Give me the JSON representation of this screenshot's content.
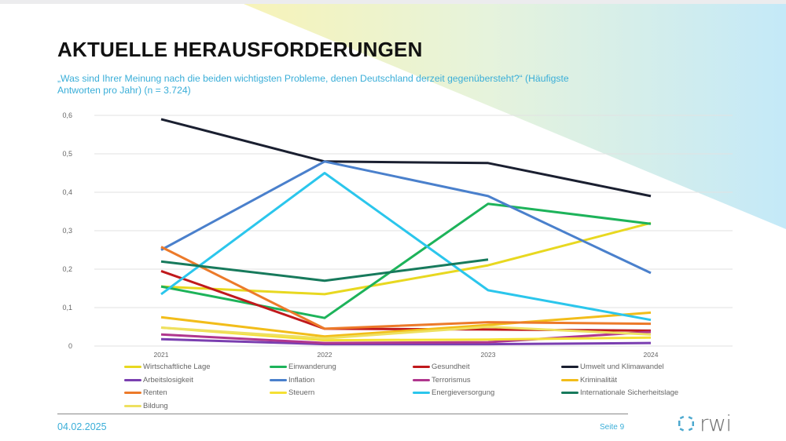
{
  "page": {
    "title": "AKTUELLE HERAUSFORDERUNGEN",
    "subtitle": "„Was sind Ihrer Meinung nach die beiden wichtigsten Probleme, denen Deutschland derzeit gegenübersteht?“ (Häufigste Antworten pro Jahr) (n = 3.724)",
    "footer_date": "04.02.2025",
    "footer_page": "Seite 9",
    "logo_text": "rwi",
    "accent_color": "#3aaed8"
  },
  "chart_data": {
    "type": "line",
    "title": "",
    "xlabel": "",
    "ylabel": "",
    "x": [
      "2021",
      "2022",
      "2023",
      "2024"
    ],
    "ylim": [
      0,
      0.6
    ],
    "yticks": [
      "0",
      "0,1",
      "0,2",
      "0,3",
      "0,4",
      "0,5",
      "0,6"
    ],
    "grid": true,
    "legend_position": "bottom",
    "series": [
      {
        "name": "Wirtschaftliche Lage",
        "color": "#e8d820",
        "values": [
          0.155,
          0.135,
          0.21,
          0.32
        ]
      },
      {
        "name": "Einwanderung",
        "color": "#1db35a",
        "values": [
          0.155,
          0.073,
          0.37,
          0.318
        ]
      },
      {
        "name": "Gesundheit",
        "color": "#c0191c",
        "values": [
          0.195,
          0.045,
          0.043,
          0.04
        ]
      },
      {
        "name": "Umwelt und Klimawandel",
        "color": "#1a1f30",
        "values": [
          0.59,
          0.48,
          0.476,
          0.39
        ]
      },
      {
        "name": "Arbeitslosigkeit",
        "color": "#7a3fb0",
        "values": [
          0.018,
          0.005,
          0.005,
          0.008
        ]
      },
      {
        "name": "Inflation",
        "color": "#4a80cc",
        "values": [
          0.25,
          0.48,
          0.39,
          0.19
        ]
      },
      {
        "name": "Terrorismus",
        "color": "#b0368e",
        "values": [
          0.03,
          0.008,
          0.01,
          0.037
        ]
      },
      {
        "name": "Kriminalität",
        "color": "#f2bd1a",
        "values": [
          0.075,
          0.025,
          0.055,
          0.087
        ]
      },
      {
        "name": "Renten",
        "color": "#ec7a2a",
        "values": [
          0.258,
          0.045,
          0.062,
          0.058
        ]
      },
      {
        "name": "Steuern",
        "color": "#f5e034",
        "values": [
          0.048,
          0.015,
          0.017,
          0.022
        ]
      },
      {
        "name": "Energieversorgung",
        "color": "#2bc6ec",
        "values": [
          0.135,
          0.45,
          0.145,
          0.068
        ]
      },
      {
        "name": "Internationale Sicherheitslage",
        "color": "#177a5c",
        "values": [
          0.22,
          0.17,
          0.225,
          null
        ]
      },
      {
        "name": "Bildung",
        "color": "#eee060",
        "values": [
          0.048,
          0.02,
          0.05,
          0.03
        ]
      }
    ]
  }
}
